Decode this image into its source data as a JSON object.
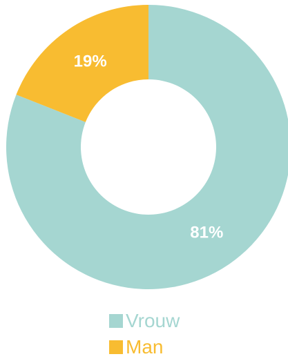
{
  "chart_data": {
    "type": "pie",
    "variant": "donut",
    "slices": [
      {
        "name": "Vrouw",
        "value": 81,
        "label": "81%",
        "color": "#a5d6d1"
      },
      {
        "name": "Man",
        "value": 19,
        "label": "19%",
        "color": "#f8bc31"
      }
    ],
    "legend_position": "bottom",
    "title": ""
  }
}
